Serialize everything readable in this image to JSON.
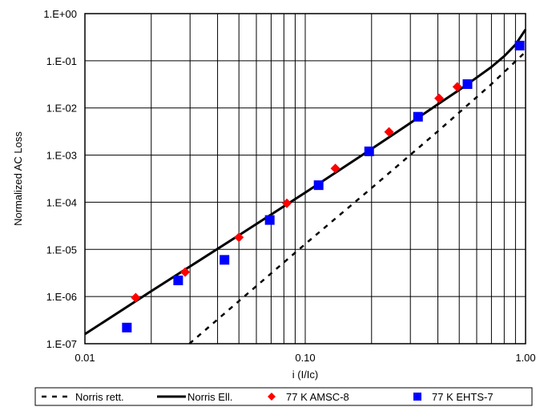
{
  "chart_data": {
    "type": "line",
    "xlabel": "i (I/Ic)",
    "ylabel": "Normalized AC Loss",
    "x_scale": "log",
    "y_scale": "log",
    "xlim": [
      0.01,
      1.0
    ],
    "ylim": [
      1e-07,
      1.0
    ],
    "grid": true,
    "x_ticks": [
      {
        "value": 0.01,
        "label": "0.01"
      },
      {
        "value": 0.1,
        "label": "0.10"
      },
      {
        "value": 1.0,
        "label": "1.00"
      }
    ],
    "y_ticks": [
      {
        "value": 1.0,
        "label": "1.E+00"
      },
      {
        "value": 0.1,
        "label": "1.E-01"
      },
      {
        "value": 0.01,
        "label": "1.E-02"
      },
      {
        "value": 0.001,
        "label": "1.E-03"
      },
      {
        "value": 0.0001,
        "label": "1.E-04"
      },
      {
        "value": 1e-05,
        "label": "1.E-05"
      },
      {
        "value": 1e-06,
        "label": "1.E-06"
      },
      {
        "value": 1e-07,
        "label": "1.E-07"
      }
    ],
    "legend_position": "bottom",
    "series": [
      {
        "name": "Norris rett.",
        "style": "dashed-line",
        "color": "#000000",
        "x": [
          0.0298,
          0.05,
          0.1,
          0.2,
          0.4,
          0.7,
          1.0
        ],
        "y": [
          1e-07,
          8e-07,
          1.3e-05,
          0.0002,
          0.0032,
          0.032,
          0.155
        ]
      },
      {
        "name": "Norris Ell.",
        "style": "solid-line",
        "color": "#000000",
        "x": [
          0.01,
          0.02,
          0.05,
          0.1,
          0.2,
          0.3,
          0.4,
          0.5,
          0.6,
          0.7,
          0.8,
          0.9,
          1.0
        ],
        "y": [
          1.6e-07,
          1.3e-06,
          2e-05,
          0.00016,
          0.00135,
          0.0048,
          0.012,
          0.024,
          0.044,
          0.074,
          0.125,
          0.22,
          0.46
        ]
      },
      {
        "name": "77 K AMSC-8",
        "style": "diamond-markers",
        "color": "#ff0000",
        "x": [
          0.017,
          0.0285,
          0.05,
          0.0825,
          0.137,
          0.24,
          0.405,
          0.49
        ],
        "y": [
          9.5e-07,
          3.3e-06,
          1.8e-05,
          9.5e-05,
          0.00052,
          0.0031,
          0.016,
          0.028
        ]
      },
      {
        "name": "77 K EHTS-7",
        "style": "square-markers",
        "color": "#0000ff",
        "x": [
          0.0155,
          0.0265,
          0.043,
          0.069,
          0.115,
          0.195,
          0.325,
          0.545,
          0.94
        ],
        "y": [
          2.2e-07,
          2.2e-06,
          6e-06,
          4.2e-05,
          0.00023,
          0.0012,
          0.0065,
          0.032,
          0.21
        ]
      }
    ]
  }
}
